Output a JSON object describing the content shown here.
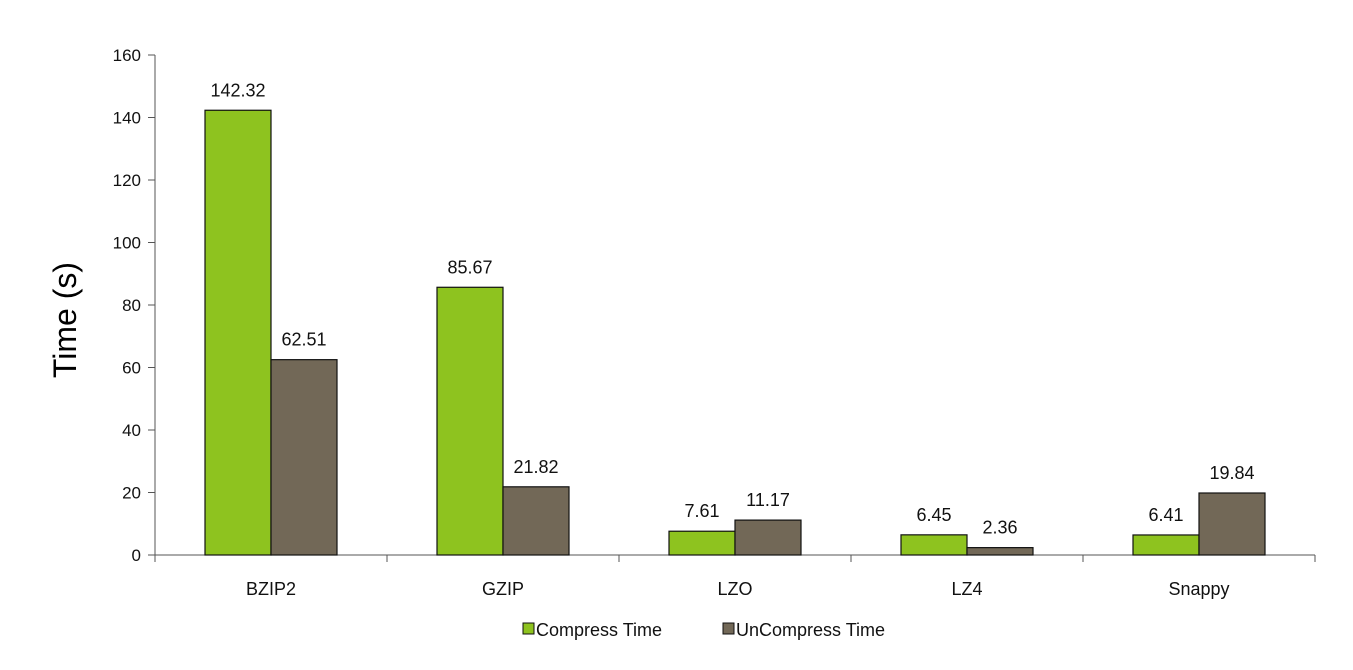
{
  "chart_data": {
    "type": "bar",
    "categories": [
      "BZIP2",
      "GZIP",
      "LZO",
      "LZ4",
      "Snappy"
    ],
    "series": [
      {
        "name": "Compress Time",
        "values": [
          142.32,
          85.67,
          7.61,
          6.45,
          6.41
        ],
        "labels": [
          "142.32",
          "85.67",
          "7.61",
          "6.45",
          "6.41"
        ],
        "color": "#8ec31f"
      },
      {
        "name": "UnCompress Time",
        "values": [
          62.51,
          21.82,
          11.17,
          2.36,
          19.84
        ],
        "labels": [
          "62.51",
          "21.82",
          "11.17",
          "2.36",
          "19.84"
        ],
        "color": "#726857"
      }
    ],
    "title": "",
    "xlabel": "",
    "ylabel": "Time (s)",
    "ylim": [
      0,
      160
    ],
    "yticks": [
      0,
      20,
      40,
      60,
      80,
      100,
      120,
      140,
      160
    ],
    "grid": false,
    "legend": "bottom"
  }
}
